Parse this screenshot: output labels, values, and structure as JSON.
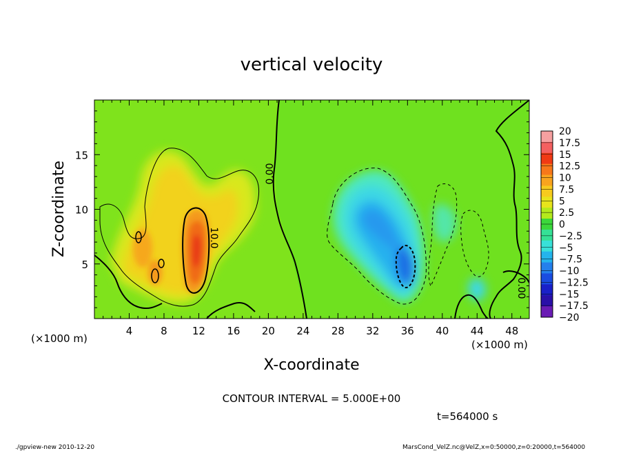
{
  "chart_data": {
    "type": "heatmap",
    "title": "vertical velocity",
    "xlabel": "X-coordinate",
    "ylabel": "Z-coordinate",
    "x_unit_left": "(×1000 m)",
    "x_unit_right": "(×1000 m)",
    "xlim": [
      0,
      50
    ],
    "ylim": [
      0,
      20
    ],
    "xticks": [
      "4",
      "8",
      "12",
      "16",
      "20",
      "24",
      "28",
      "32",
      "36",
      "40",
      "44",
      "48"
    ],
    "yticks": [
      "5",
      "10",
      "15"
    ],
    "colorbar": {
      "labels": [
        "20",
        "17.5",
        "15",
        "12.5",
        "10",
        "7.5",
        "5",
        "2.5",
        "0",
        "−2.5",
        "−5",
        "−7.5",
        "−10",
        "−12.5",
        "−15",
        "−17.5",
        "−20"
      ],
      "colors": [
        "#f6a0a0",
        "#f46060",
        "#f03a14",
        "#f7781a",
        "#f9a41e",
        "#f7cb1e",
        "#e8e41c",
        "#b4ea1c",
        "#3bd83b",
        "#35e096",
        "#38e0d8",
        "#24b4ec",
        "#2480ec",
        "#1a4ce0",
        "#1a20c8",
        "#2a10a8",
        "#6a1cb4"
      ]
    },
    "contour_labels": [
      "0.00",
      "10.0",
      "0.00"
    ],
    "contour_interval": "CONTOUR INTERVAL = 5.000E+00",
    "time_label": "t=564000 s",
    "footer_left": "./gpview-new  2010-12-20",
    "footer_right": "MarsCond_VelZ.nc@VelZ,x=0:50000,z=0:20000,t=564000",
    "features": [
      {
        "name": "updraft-core",
        "x": 11.5,
        "z": 6.5,
        "peak": 12.5
      },
      {
        "name": "updraft-lobe-west",
        "x": 5.5,
        "z": 6.5,
        "peak": 7.5
      },
      {
        "name": "downdraft-core",
        "x": 35,
        "z": 5,
        "peak": -10
      },
      {
        "name": "downdraft-upper",
        "x": 31,
        "z": 9,
        "peak": -7.5
      }
    ]
  }
}
